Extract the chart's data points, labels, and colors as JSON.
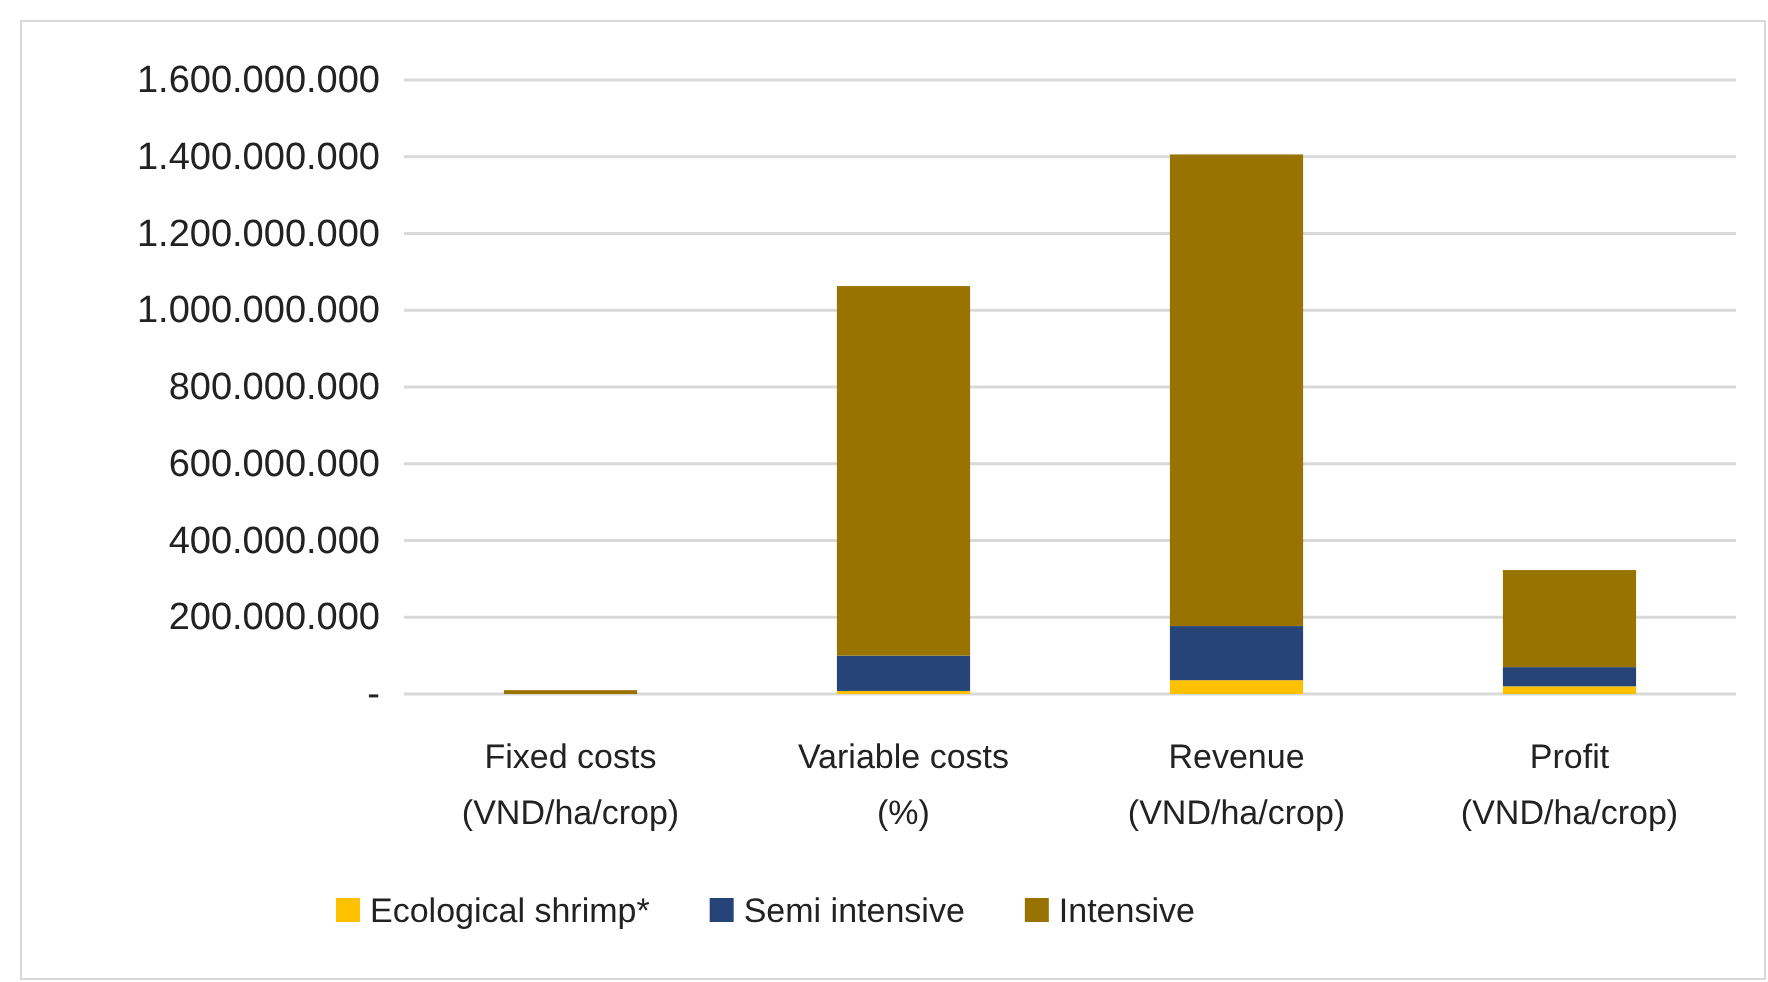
{
  "chart_data": {
    "type": "bar",
    "stacked": true,
    "categories": [
      "Fixed costs\n(VND/ha/crop)",
      "Variable costs\n(%)",
      "Revenue\n(VND/ha/crop)",
      "Profit\n(VND/ha/crop)"
    ],
    "series": [
      {
        "name": "Ecological shrimp*",
        "color": "#ffc000",
        "values": [
          0,
          8000000,
          36000000,
          20000000
        ]
      },
      {
        "name": "Semi intensive",
        "color": "#264478",
        "values": [
          0,
          92000000,
          141000000,
          50000000
        ]
      },
      {
        "name": "Intensive",
        "color": "#997300",
        "values": [
          10000000,
          963000000,
          1229000000,
          253000000
        ]
      }
    ],
    "ylim": [
      0,
      1600000000
    ],
    "yticks": [
      {
        "value": 0,
        "label": "-"
      },
      {
        "value": 200000000,
        "label": "200.000.000"
      },
      {
        "value": 400000000,
        "label": "400.000.000"
      },
      {
        "value": 600000000,
        "label": "600.000.000"
      },
      {
        "value": 800000000,
        "label": "800.000.000"
      },
      {
        "value": 1000000000,
        "label": "1.000.000.000"
      },
      {
        "value": 1200000000,
        "label": "1.200.000.000"
      },
      {
        "value": 1400000000,
        "label": "1.400.000.000"
      },
      {
        "value": 1600000000,
        "label": "1.600.000.000"
      }
    ],
    "grid": "y",
    "legend": "bottom"
  }
}
